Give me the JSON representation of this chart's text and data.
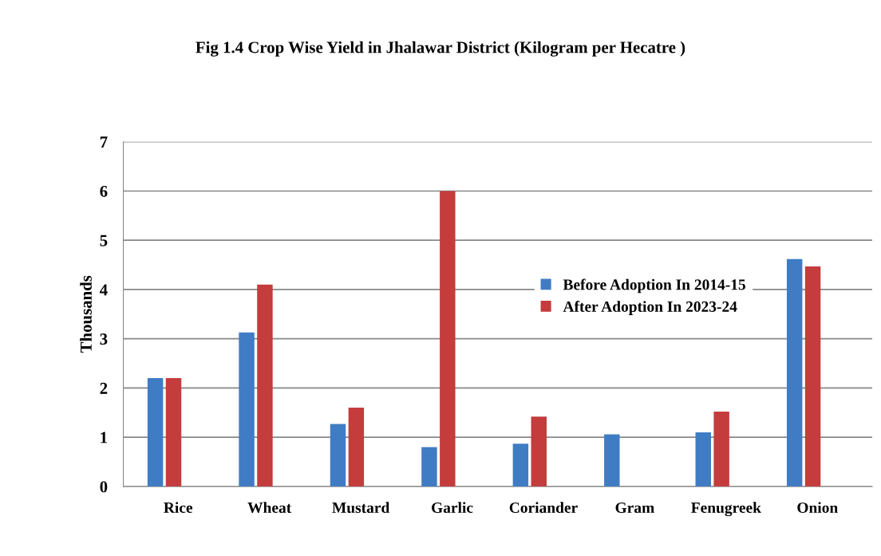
{
  "chart_data": {
    "type": "bar",
    "title": "Fig 1.4 Crop Wise Yield in Jhalawar District (Kilogram per Hecatre )",
    "ylabel": "Thousands",
    "categories": [
      "Rice",
      "Wheat",
      "Mustard",
      "Garlic",
      "Coriander",
      "Gram",
      "Fenugreek",
      "Onion"
    ],
    "series": [
      {
        "name": "Before Adoption In 2014-15",
        "color": "#3f7cc4",
        "values": [
          2.2,
          3.13,
          1.27,
          0.8,
          0.87,
          1.06,
          1.1,
          4.62
        ]
      },
      {
        "name": "After Adoption In 2023-24",
        "color": "#c43c3c",
        "values": [
          2.2,
          4.1,
          1.6,
          6.0,
          1.42,
          null,
          1.52,
          4.47
        ]
      }
    ],
    "ylim": [
      0,
      7
    ],
    "yticks": [
      0,
      1,
      2,
      3,
      4,
      5,
      6,
      7
    ],
    "grid": "y",
    "legend": "center right"
  }
}
